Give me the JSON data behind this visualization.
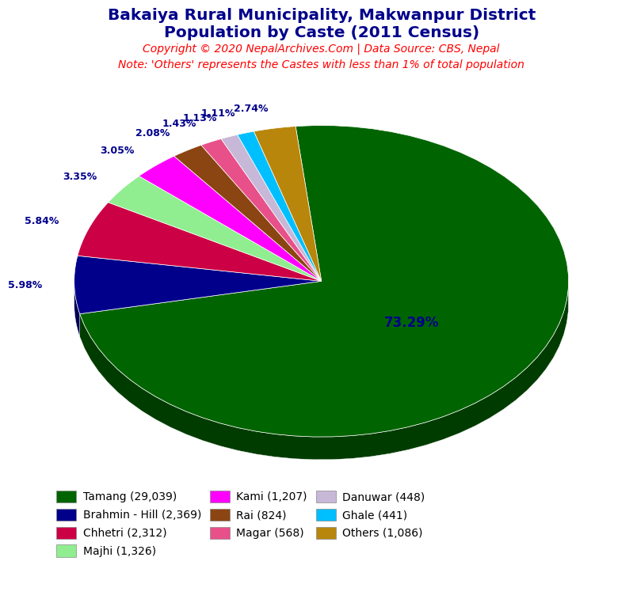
{
  "title_line1": "Bakaiya Rural Municipality, Makwanpur District",
  "title_line2": "Population by Caste (2011 Census)",
  "title_color": "#00008B",
  "copyright_text": "Copyright © 2020 NepalArchives.Com | Data Source: CBS, Nepal",
  "copyright_color": "#FF0000",
  "note_text": "Note: 'Others' represents the Castes with less than 1% of total population",
  "note_color": "#FF0000",
  "labels": [
    "Tamang",
    "Brahmin - Hill",
    "Chhetri",
    "Majhi",
    "Kami",
    "Rai",
    "Magar",
    "Danuwar",
    "Ghale",
    "Others"
  ],
  "values": [
    29039,
    2369,
    2312,
    1326,
    1207,
    824,
    568,
    448,
    441,
    1086
  ],
  "colors": [
    "#006400",
    "#00008B",
    "#CC0044",
    "#90EE90",
    "#FF00FF",
    "#8B4513",
    "#E8508A",
    "#C8B8D8",
    "#00BFFF",
    "#B8860B"
  ],
  "pct_labels": [
    "73.29%",
    "5.98%",
    "5.84%",
    "3.35%",
    "3.05%",
    "2.08%",
    "1.43%",
    "1.13%",
    "1.11%",
    "2.74%"
  ],
  "pct_color": "#00008B",
  "legend_labels": [
    "Tamang (29,039)",
    "Brahmin - Hill (2,369)",
    "Chhetri (2,312)",
    "Majhi (1,326)",
    "Kami (1,207)",
    "Rai (824)",
    "Magar (568)",
    "Danuwar (448)",
    "Ghale (441)",
    "Others (1,086)"
  ],
  "background_color": "#FFFFFF",
  "startangle": 96,
  "depth": 0.055
}
